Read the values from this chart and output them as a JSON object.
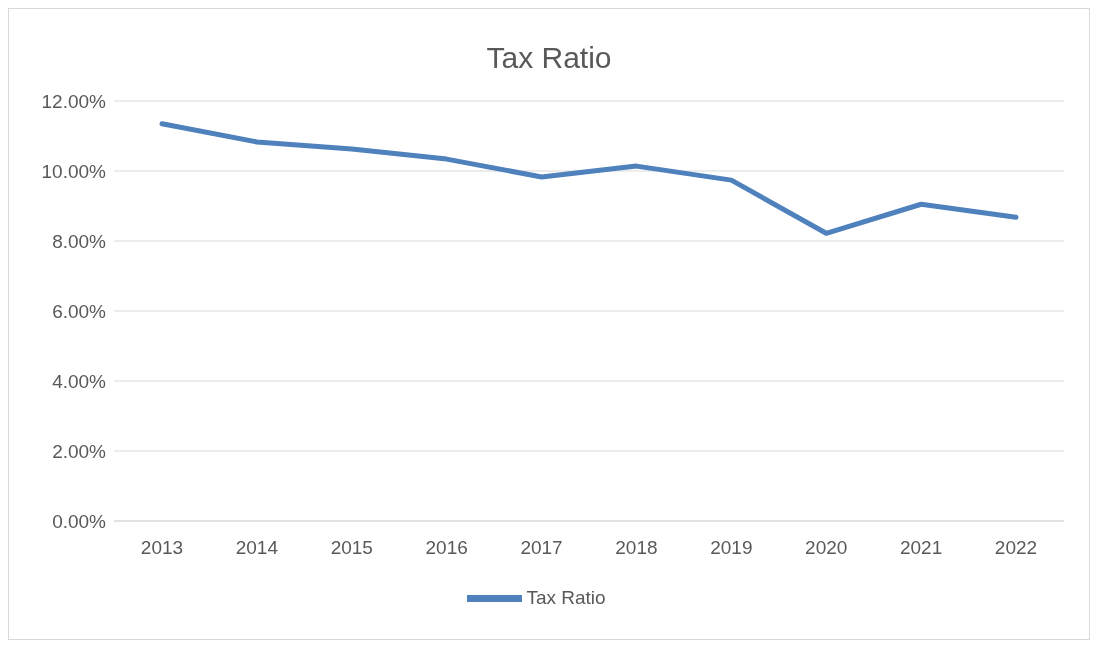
{
  "chart_data": {
    "type": "line",
    "title": "Tax Ratio",
    "categories": [
      "2013",
      "2014",
      "2015",
      "2016",
      "2017",
      "2018",
      "2019",
      "2020",
      "2021",
      "2022"
    ],
    "series": [
      {
        "name": "Tax Ratio",
        "color": "#4f81bd",
        "values": [
          11.35,
          10.83,
          10.63,
          10.34,
          9.83,
          10.14,
          9.74,
          8.22,
          9.05,
          8.68
        ]
      }
    ],
    "ylim": [
      0,
      12
    ],
    "yticks": [
      {
        "value": 0,
        "label": "0.00%"
      },
      {
        "value": 2,
        "label": "2.00%"
      },
      {
        "value": 4,
        "label": "4.00%"
      },
      {
        "value": 6,
        "label": "6.00%"
      },
      {
        "value": 8,
        "label": "8.00%"
      },
      {
        "value": 10,
        "label": "10.00%"
      },
      {
        "value": 12,
        "label": "12.00%"
      }
    ],
    "grid": "y",
    "legend": "bottom",
    "marker": "none",
    "line_style": "solid"
  }
}
